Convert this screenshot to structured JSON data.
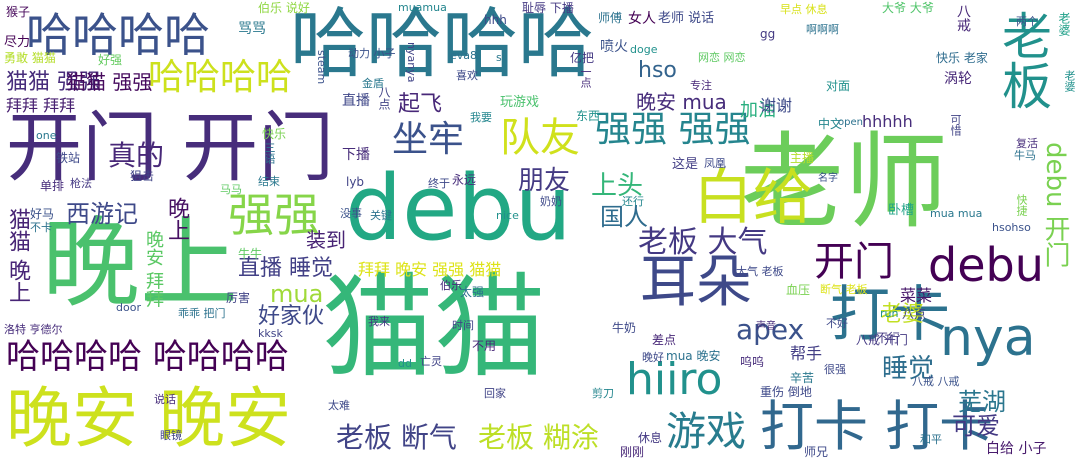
{
  "words": [
    {
      "text": "哈哈哈哈",
      "color": "#2a788e"
    },
    {
      "text": "猫猫",
      "color": "#35b779"
    },
    {
      "text": "晚上",
      "color": "#4ac16d"
    },
    {
      "text": "老师",
      "color": "#6ccd5a"
    },
    {
      "text": "debu",
      "color": "#22a884"
    },
    {
      "text": "开门 开门",
      "color": "#472d7b"
    },
    {
      "text": "哈哈哈哈",
      "color": "#3b528b"
    },
    {
      "text": "晚安 晚安",
      "color": "#cde11d"
    },
    {
      "text": "打卡",
      "color": "#2c728e"
    },
    {
      "text": "白给",
      "color": "#c8e020"
    },
    {
      "text": "耳朵",
      "color": "#3e4989"
    },
    {
      "text": "打卡 打卡",
      "color": "#31688e"
    },
    {
      "text": "老板",
      "color": "#21918c"
    },
    {
      "text": "debu",
      "color": "#440154"
    },
    {
      "text": "哈哈哈哈",
      "color": "#cde11d"
    },
    {
      "text": "哈哈哈哈 哈哈哈哈",
      "color": "#440154"
    },
    {
      "text": "坐牢",
      "color": "#3b528b"
    },
    {
      "text": "队友",
      "color": "#d0e11c"
    },
    {
      "text": "强强 强强",
      "color": "#25858e"
    },
    {
      "text": "强强",
      "color": "#86d549"
    },
    {
      "text": "nya",
      "color": "#2c728e"
    },
    {
      "text": "hiiro",
      "color": "#21918c"
    },
    {
      "text": "游戏",
      "color": "#287c8e"
    },
    {
      "text": "开门",
      "color": "#440154"
    },
    {
      "text": "老板 大气",
      "color": "#443983"
    },
    {
      "text": "猫猫 强强",
      "color": "#472d7b"
    },
    {
      "text": "真的",
      "color": "#482878"
    },
    {
      "text": "晚上",
      "color": "#471063"
    },
    {
      "text": "老板 断气",
      "color": "#414487"
    },
    {
      "text": "老板 糊涂",
      "color": "#bddf26"
    },
    {
      "text": "朋友",
      "color": "#443a83"
    },
    {
      "text": "上头",
      "color": "#34b679"
    },
    {
      "text": "debu 开门",
      "color": "#7ad151"
    },
    {
      "text": "西游记",
      "color": "#3e4989"
    },
    {
      "text": "猫猫 晚上",
      "color": "#482576"
    },
    {
      "text": "apex",
      "color": "#3b528b"
    },
    {
      "text": "睡觉",
      "color": "#2e6e8e"
    },
    {
      "text": "mua",
      "color": "#a0da39"
    },
    {
      "text": "国人",
      "color": "#2f6c8e"
    },
    {
      "text": "直播 睡觉",
      "color": "#424086"
    },
    {
      "text": "装到",
      "color": "#482475"
    },
    {
      "text": "hso",
      "color": "#33638d"
    },
    {
      "text": "起飞",
      "color": "#482878"
    },
    {
      "text": "晚安 mua",
      "color": "#472d7b"
    },
    {
      "text": "老婆",
      "color": "#c2df23"
    },
    {
      "text": "芜湖",
      "color": "#2a768e"
    },
    {
      "text": "可爱",
      "color": "#443983"
    },
    {
      "text": "好家伙",
      "color": "#3e4989"
    },
    {
      "text": "拜拜 晚安 强强 猫猫",
      "color": "#dde318"
    },
    {
      "text": "猫猫 强强",
      "color": "#460a5d"
    },
    {
      "text": "拜拜 拜拜",
      "color": "#482071"
    },
    {
      "text": "晚安 拜拜",
      "color": "#5ac864"
    },
    {
      "text": "加油",
      "color": "#29af7f"
    },
    {
      "text": "下播",
      "color": "#472c7a"
    },
    {
      "text": "直播",
      "color": "#3f4788"
    },
    {
      "text": "谢谢",
      "color": "#3e4a89"
    },
    {
      "text": "hhhhh",
      "color": "#472d7b"
    },
    {
      "text": "菜菜",
      "color": "#48196b"
    },
    {
      "text": "帮手",
      "color": "#433e85"
    },
    {
      "text": "白给 小子",
      "color": "#481b6d"
    },
    {
      "text": "猴子",
      "color": "#46075a"
    },
    {
      "text": "伯乐 说好",
      "color": "#90d743"
    },
    {
      "text": "骂骂",
      "color": "#2a788e"
    },
    {
      "text": "八戒",
      "color": "#482878"
    },
    {
      "text": "老婆",
      "color": "#1fa088"
    },
    {
      "text": "尽力",
      "color": "#440154"
    },
    {
      "text": "勇敢 猫猫",
      "color": "#b5de2b"
    },
    {
      "text": "好强",
      "color": "#63cb5f"
    },
    {
      "text": "女人",
      "color": "#440154"
    },
    {
      "text": "老师 说话",
      "color": "#3e4989"
    },
    {
      "text": "师傅",
      "color": "#2c728e"
    },
    {
      "text": "耻辱 下播",
      "color": "#443983"
    },
    {
      "text": "大爷 大爷",
      "color": "#50c46a"
    },
    {
      "text": "喷火",
      "color": "#3b528b"
    },
    {
      "text": "muamua",
      "color": "#24868e"
    },
    {
      "text": "hhh",
      "color": "#3e4989"
    },
    {
      "text": "gg",
      "color": "#443a83"
    },
    {
      "text": "早点 休息",
      "color": "#d8e219"
    },
    {
      "text": "快乐 老家",
      "color": "#2f6c8e"
    },
    {
      "text": "两个",
      "color": "#3b528b"
    },
    {
      "text": "老婆",
      "color": "#21918c"
    },
    {
      "text": "nyanya",
      "color": "#414487"
    },
    {
      "text": "动力 小子",
      "color": "#3b528b"
    },
    {
      "text": "sc",
      "color": "#2a788e"
    },
    {
      "text": "亿把",
      "color": "#443983"
    },
    {
      "text": "doge",
      "color": "#21918c"
    },
    {
      "text": "steam",
      "color": "#3b528b"
    },
    {
      "text": "eva8",
      "color": "#2c728e"
    },
    {
      "text": "喜欢",
      "color": "#3e4a89"
    },
    {
      "text": "金盾",
      "color": "#2a788e"
    },
    {
      "text": "八点",
      "color": "#414487"
    },
    {
      "text": "一点",
      "color": "#472d7b"
    },
    {
      "text": "专注",
      "color": "#482878"
    },
    {
      "text": "玩游戏",
      "color": "#4ac16d"
    },
    {
      "text": "东西",
      "color": "#21918c"
    },
    {
      "text": "我要",
      "color": "#24868e"
    },
    {
      "text": "one",
      "color": "#2a788e"
    },
    {
      "text": "铁站",
      "color": "#3e4989"
    },
    {
      "text": "快乐",
      "color": "#7ad151"
    },
    {
      "text": "三语",
      "color": "#2c728e"
    },
    {
      "text": "狙击",
      "color": "#414487"
    },
    {
      "text": "单排",
      "color": "#472d7b"
    },
    {
      "text": "枪法",
      "color": "#443983"
    },
    {
      "text": "结束",
      "color": "#2a788e"
    },
    {
      "text": "马马",
      "color": "#5ec962"
    },
    {
      "text": "好马",
      "color": "#3b528b"
    },
    {
      "text": "不卡",
      "color": "#2c728e"
    },
    {
      "text": "这是",
      "color": "#433e85"
    },
    {
      "text": "凤凰",
      "color": "#3e4989"
    },
    {
      "text": "复活",
      "color": "#472d7b"
    },
    {
      "text": "牛马",
      "color": "#2c728e"
    },
    {
      "text": "名字",
      "color": "#3b528b"
    },
    {
      "text": "对面",
      "color": "#21918c"
    },
    {
      "text": "中文",
      "color": "#24868e"
    },
    {
      "text": "open",
      "color": "#2c728e"
    },
    {
      "text": "涡轮",
      "color": "#482878"
    },
    {
      "text": "可惜",
      "color": "#414487"
    },
    {
      "text": "永远",
      "color": "#472d7b"
    },
    {
      "text": "终于",
      "color": "#3e4989"
    },
    {
      "text": "卧槽",
      "color": "#20a386"
    },
    {
      "text": "主播",
      "color": "#b5de2b"
    },
    {
      "text": "快捷",
      "color": "#7ad151"
    },
    {
      "text": "lyb",
      "color": "#414487"
    },
    {
      "text": "mua mua",
      "color": "#2a788e"
    },
    {
      "text": "hsohso",
      "color": "#3b528b"
    },
    {
      "text": "nice",
      "color": "#21918c"
    },
    {
      "text": "关键",
      "color": "#2c728e"
    },
    {
      "text": "奶奶",
      "color": "#3e4989"
    },
    {
      "text": "还行",
      "color": "#24868e"
    },
    {
      "text": "不行",
      "color": "#443983"
    },
    {
      "text": "牛牛",
      "color": "#5ec962"
    },
    {
      "text": "厉害",
      "color": "#414487"
    },
    {
      "text": "没事",
      "color": "#3b528b"
    },
    {
      "text": "伯乐",
      "color": "#472d7b"
    },
    {
      "text": "太强",
      "color": "#2c728e"
    },
    {
      "text": "大气 老板",
      "color": "#3e4989"
    },
    {
      "text": "血压",
      "color": "#7ad151"
    },
    {
      "text": "断气 老板",
      "color": "#dde318"
    },
    {
      "text": "八点",
      "color": "#414487"
    },
    {
      "text": "run",
      "color": "#21918c"
    },
    {
      "text": "声音",
      "color": "#472d7b"
    },
    {
      "text": "不好",
      "color": "#3e4989"
    },
    {
      "text": "差点",
      "color": "#482878"
    },
    {
      "text": "牛奶",
      "color": "#3e4989"
    },
    {
      "text": "时间",
      "color": "#414487"
    },
    {
      "text": "我来",
      "color": "#443983"
    },
    {
      "text": "乖乖 把门",
      "color": "#2c728e"
    },
    {
      "text": "door",
      "color": "#3b528b"
    },
    {
      "text": "kksk",
      "color": "#414487"
    },
    {
      "text": "洛特 亨德尔",
      "color": "#472d7b"
    },
    {
      "text": "不用",
      "color": "#482878"
    },
    {
      "text": "dd",
      "color": "#21918c"
    },
    {
      "text": "亡灵",
      "color": "#414487"
    },
    {
      "text": "晚好",
      "color": "#3e4989"
    },
    {
      "text": "mua 晚安",
      "color": "#2c728e"
    },
    {
      "text": "呜呜",
      "color": "#472d7b"
    },
    {
      "text": "八戒 开门",
      "color": "#443983"
    },
    {
      "text": "很强",
      "color": "#3e4989"
    },
    {
      "text": "辛苦",
      "color": "#2a788e"
    },
    {
      "text": "八戒 八戒",
      "color": "#3b528b"
    },
    {
      "text": "回家",
      "color": "#414487"
    },
    {
      "text": "剪刀",
      "color": "#24868e"
    },
    {
      "text": "重伤 倒地",
      "color": "#3e4989"
    },
    {
      "text": "说话",
      "color": "#472d7b"
    },
    {
      "text": "眼镜",
      "color": "#414487"
    },
    {
      "text": "太难",
      "color": "#3e4989"
    },
    {
      "text": "休息",
      "color": "#443983"
    },
    {
      "text": "刚刚",
      "color": "#482878"
    },
    {
      "text": "师兄",
      "color": "#3e4989"
    },
    {
      "text": "和平",
      "color": "#2c728e"
    },
    {
      "text": "啊啊啊",
      "color": "#2c728e"
    },
    {
      "text": "网恋 网恋",
      "color": "#5ec962"
    }
  ]
}
